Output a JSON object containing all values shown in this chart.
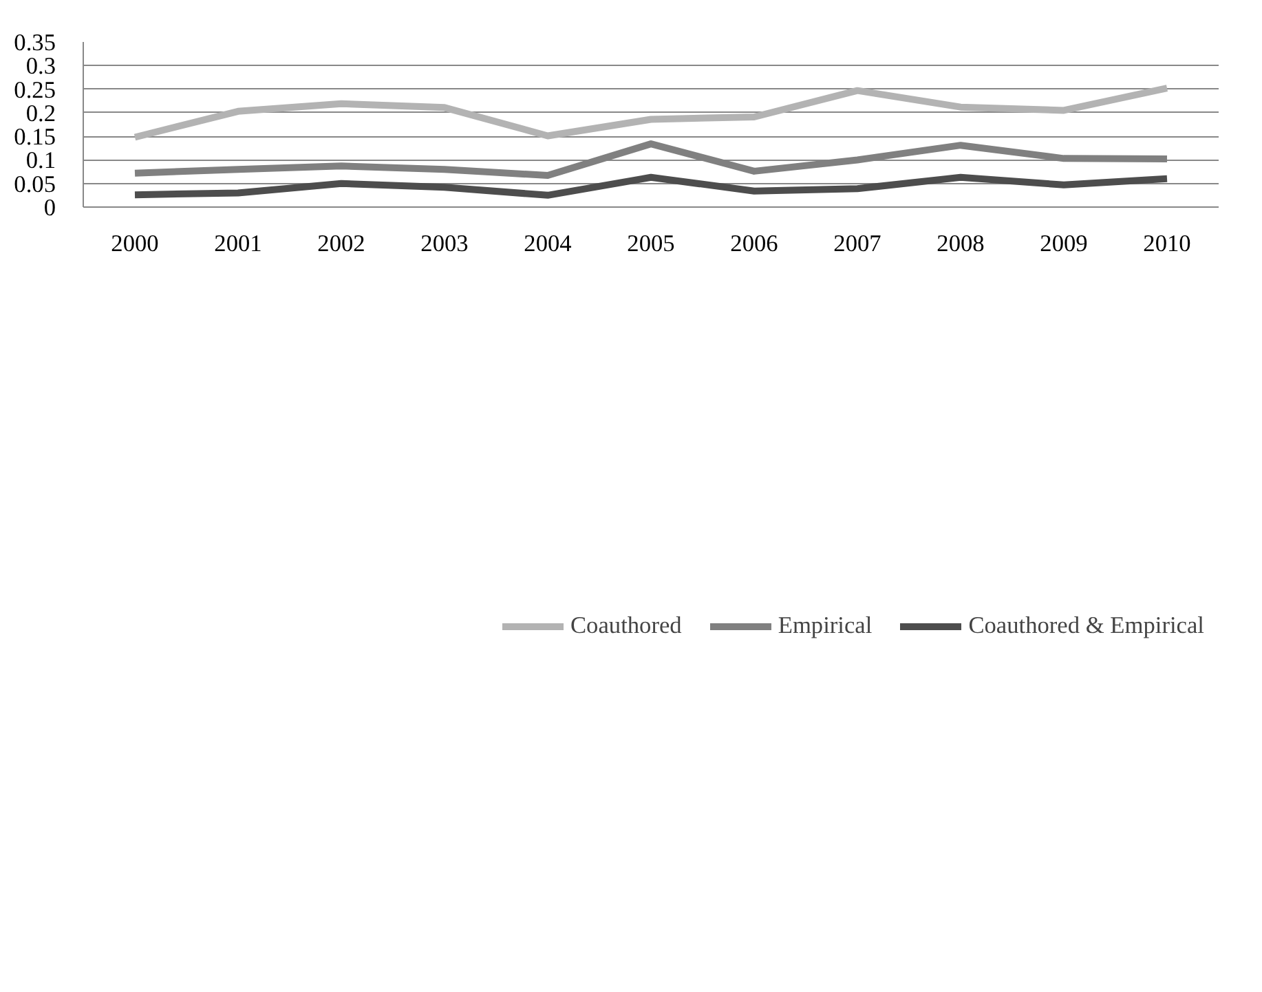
{
  "chart_data": {
    "type": "line",
    "categories": [
      "2000",
      "2001",
      "2002",
      "2003",
      "2004",
      "2005",
      "2006",
      "2007",
      "2008",
      "2009",
      "2010"
    ],
    "series": [
      {
        "name": "Coauthored",
        "color": "#b3b3b3",
        "values": [
          0.148,
          0.203,
          0.219,
          0.211,
          0.151,
          0.186,
          0.191,
          0.247,
          0.212,
          0.205,
          0.252
        ]
      },
      {
        "name": "Empirical",
        "color": "#808080",
        "values": [
          0.072,
          0.08,
          0.087,
          0.08,
          0.067,
          0.134,
          0.076,
          0.1,
          0.131,
          0.103,
          0.102
        ]
      },
      {
        "name": "Coauthored & Empirical",
        "color": "#4d4d4d",
        "values": [
          0.026,
          0.03,
          0.05,
          0.042,
          0.025,
          0.063,
          0.034,
          0.039,
          0.063,
          0.047,
          0.06
        ]
      }
    ],
    "ylim": [
      0,
      0.35
    ],
    "yticks": [
      0,
      0.05,
      0.1,
      0.15,
      0.2,
      0.25,
      0.3,
      0.35
    ],
    "grid": "y",
    "legend": "bottom",
    "marker": "none",
    "line_style": "solid"
  }
}
